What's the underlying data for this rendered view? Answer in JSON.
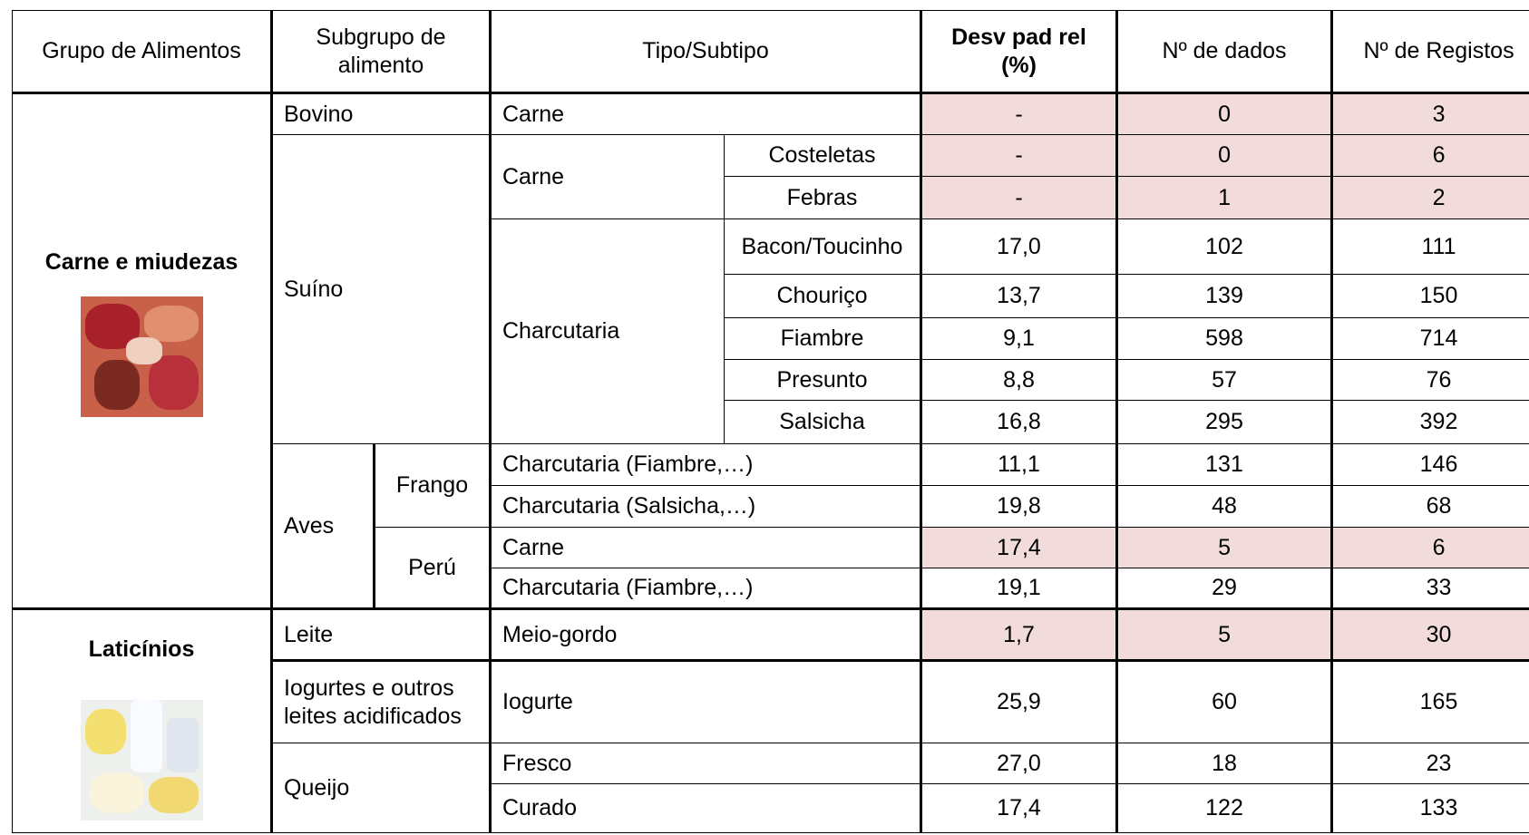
{
  "table": {
    "header": [
      "Grupo de Alimentos",
      "Subgrupo de alimento",
      "Tipo/Subtipo",
      "Desv pad rel (%)",
      "Nº de dados",
      "Nº de Registos"
    ],
    "groups": [
      "Carne e miudezas",
      "Laticínios"
    ],
    "rows": [
      {
        "subgroup": "Bovino",
        "type": "Carne",
        "values": [
          "-",
          "0",
          "3"
        ]
      },
      {
        "subgroup": "Suíno",
        "type": "Carne",
        "subtype": "Costeletas",
        "values": [
          "-",
          "0",
          "6"
        ]
      },
      {
        "subtype": "Febras",
        "values": [
          "-",
          "1",
          "2"
        ]
      },
      {
        "type": "Charcutaria",
        "subtype": "Bacon/Toucinho",
        "values": [
          "17,0",
          "102",
          "111"
        ]
      },
      {
        "subtype": "Chouriço",
        "values": [
          "13,7",
          "139",
          "150"
        ]
      },
      {
        "subtype": "Fiambre",
        "values": [
          "9,1",
          "598",
          "714"
        ]
      },
      {
        "subtype": "Presunto",
        "values": [
          "8,8",
          "57",
          "76"
        ]
      },
      {
        "subtype": "Salsicha",
        "values": [
          "16,8",
          "295",
          "392"
        ]
      },
      {
        "subgroup": "Aves",
        "kind": "Frango",
        "type": "Charcutaria (Fiambre,…)",
        "values": [
          "11,1",
          "131",
          "146"
        ]
      },
      {
        "type": "Charcutaria (Salsicha,…)",
        "values": [
          "19,8",
          "48",
          "68"
        ]
      },
      {
        "kind": "Perú",
        "type": "Carne",
        "values": [
          "17,4",
          "5",
          "6"
        ]
      },
      {
        "type": "Charcutaria (Fiambre,…)",
        "values": [
          "19,1",
          "29",
          "33"
        ]
      },
      {
        "subgroup": "Leite",
        "type": "Meio-gordo",
        "values": [
          "1,7",
          "5",
          "30"
        ]
      },
      {
        "subgroup": "Iogurtes e outros leites acidificados",
        "type": "Iogurte",
        "values": [
          "25,9",
          "60",
          "165"
        ]
      },
      {
        "subgroup": "Queijo",
        "type": "Fresco",
        "values": [
          "27,0",
          "18",
          "23"
        ]
      },
      {
        "type": "Curado",
        "values": [
          "17,4",
          "122",
          "133"
        ]
      }
    ]
  }
}
